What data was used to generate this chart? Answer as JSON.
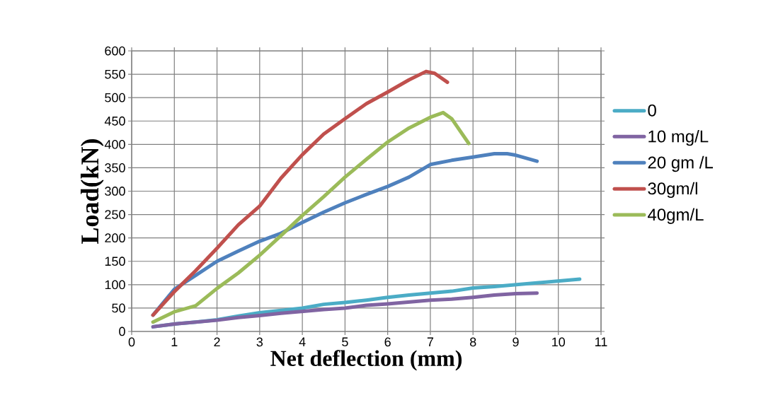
{
  "chart_data": {
    "type": "line",
    "xlabel": "Net deflection (mm)",
    "ylabel": "Load(kN)",
    "xlim": [
      0,
      11
    ],
    "ylim": [
      0,
      600
    ],
    "xticks": [
      0,
      1,
      2,
      3,
      4,
      5,
      6,
      7,
      8,
      9,
      10,
      11
    ],
    "yticks": [
      0,
      50,
      100,
      150,
      200,
      250,
      300,
      350,
      400,
      450,
      500,
      550,
      600
    ],
    "grid": true,
    "legend": "right",
    "marker": "none",
    "line_style": "solid",
    "series": [
      {
        "name": "0",
        "color": "#4bacc6",
        "x": [
          0.5,
          1,
          1.5,
          2,
          2.5,
          3,
          3.5,
          4,
          4.5,
          5,
          5.5,
          6,
          6.5,
          7,
          7.5,
          8,
          8.5,
          9,
          9.5,
          10,
          10.5
        ],
        "values": [
          10,
          16,
          20,
          25,
          33,
          40,
          45,
          50,
          58,
          62,
          67,
          73,
          78,
          82,
          86,
          93,
          96,
          100,
          104,
          108,
          112
        ]
      },
      {
        "name": "10 mg/L",
        "color": "#8064a2",
        "x": [
          0.5,
          1,
          1.5,
          2,
          2.5,
          3,
          3.5,
          4,
          4.5,
          5,
          5.5,
          6,
          6.5,
          7,
          7.5,
          8,
          8.5,
          9,
          9.5
        ],
        "values": [
          10,
          16,
          20,
          24,
          30,
          34,
          39,
          43,
          47,
          50,
          56,
          59,
          63,
          67,
          69,
          73,
          78,
          81,
          82
        ]
      },
      {
        "name": "20 gm /L",
        "color": "#4f81bd",
        "x": [
          0.5,
          1,
          1.5,
          2,
          2.5,
          3,
          3.5,
          4,
          4.5,
          5,
          5.5,
          6,
          6.5,
          7,
          7.5,
          8,
          8.5,
          8.8,
          9,
          9.5
        ],
        "values": [
          35,
          90,
          120,
          150,
          172,
          193,
          210,
          233,
          255,
          275,
          293,
          310,
          330,
          357,
          366,
          373,
          380,
          380,
          377,
          364
        ]
      },
      {
        "name": "30gm/l",
        "color": "#c0504d",
        "x": [
          0.5,
          1,
          1.5,
          2,
          2.5,
          3,
          3.5,
          4,
          4.5,
          5,
          5.5,
          6,
          6.5,
          6.9,
          7.1,
          7.4
        ],
        "values": [
          35,
          85,
          130,
          178,
          228,
          268,
          328,
          378,
          422,
          455,
          487,
          512,
          538,
          556,
          552,
          533
        ]
      },
      {
        "name": "40gm/L",
        "color": "#9bbb59",
        "x": [
          0.5,
          1,
          1.5,
          2,
          2.5,
          3,
          3.5,
          4,
          4.5,
          5,
          5.5,
          6,
          6.5,
          7,
          7.3,
          7.5,
          7.9
        ],
        "values": [
          20,
          42,
          55,
          92,
          125,
          163,
          205,
          248,
          288,
          330,
          368,
          405,
          435,
          458,
          468,
          455,
          402
        ]
      }
    ]
  }
}
